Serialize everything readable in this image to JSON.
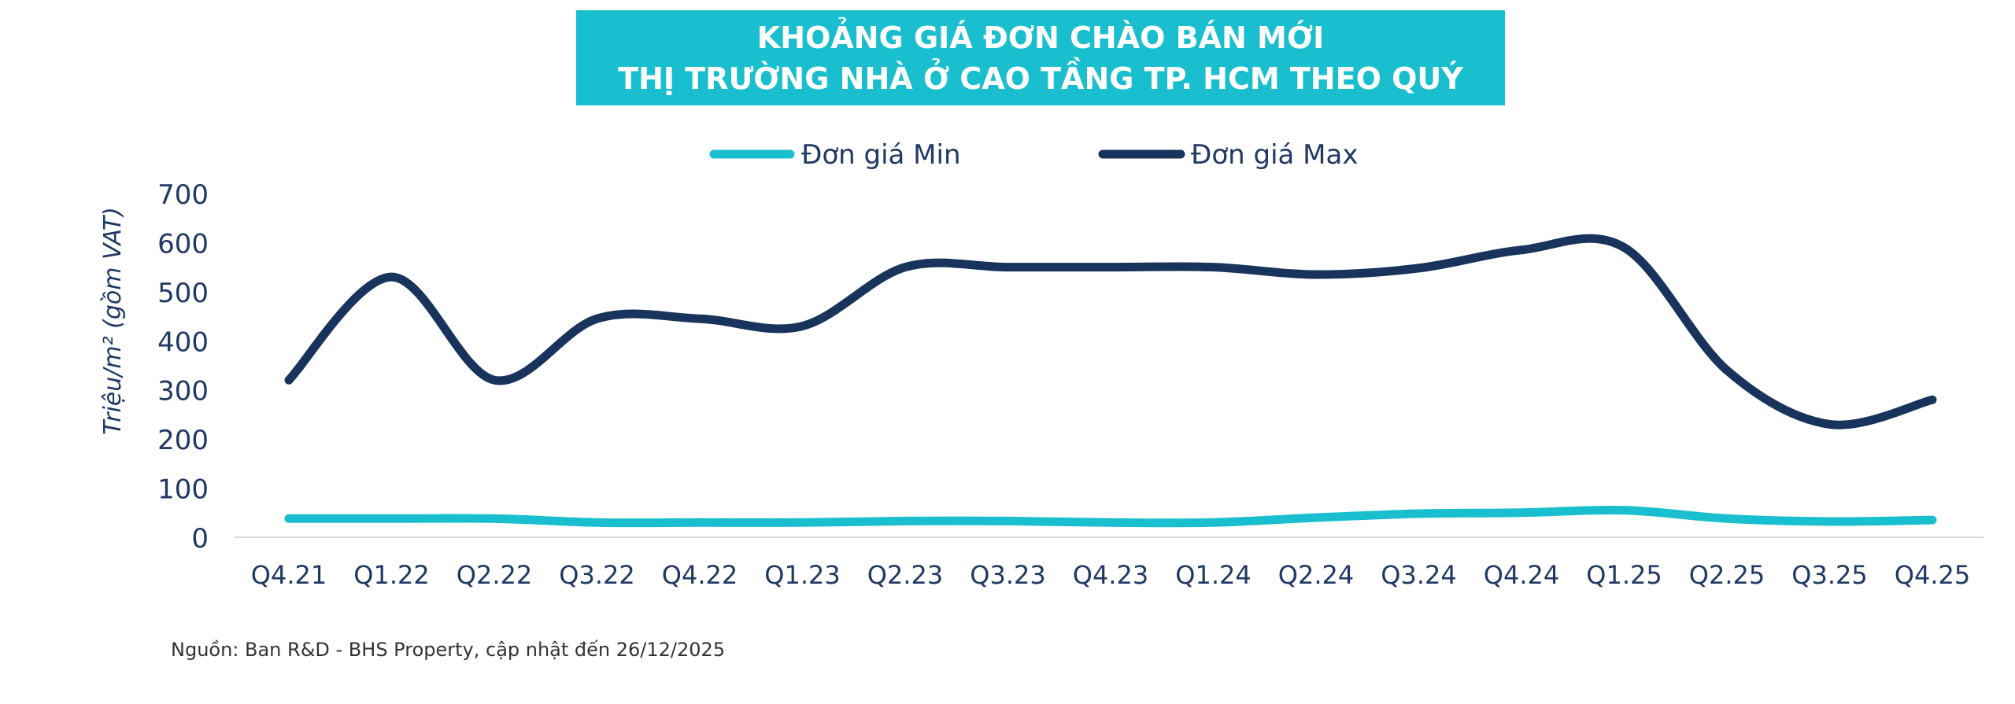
{
  "title": {
    "line1": "KHOẢNG GIÁ ĐƠN CHÀO BÁN MỚI",
    "line2": "THỊ TRƯỜNG NHÀ Ở CAO TẦNG TP. HCM THEO QUÝ"
  },
  "source": "Nguồn: Ban R&D - BHS Property, cập nhật đến 26/12/2025",
  "colors": {
    "title_bg": "#1ABFCF",
    "min": "#1ABFCF",
    "max": "#18345C",
    "text": "#1F3864"
  },
  "chart_data": {
    "type": "line",
    "ylabel": "Triệu/m² (gồm VAT)",
    "xlabel": "",
    "ylim": [
      0,
      700
    ],
    "yticks": [
      0,
      100,
      200,
      300,
      400,
      500,
      600,
      700
    ],
    "grid": false,
    "legend_position": "top-center",
    "smooth": true,
    "categories": [
      "Q4.21",
      "Q1.22",
      "Q2.22",
      "Q3.22",
      "Q4.22",
      "Q1.23",
      "Q2.23",
      "Q3.23",
      "Q4.23",
      "Q1.24",
      "Q2.24",
      "Q3.24",
      "Q4.24",
      "Q1.25",
      "Q2.25",
      "Q3.25",
      "Q4.25"
    ],
    "series": [
      {
        "name": "Đơn giá Min",
        "color": "#1ABFCF",
        "values": [
          38,
          38,
          38,
          30,
          30,
          30,
          33,
          33,
          30,
          30,
          40,
          48,
          50,
          55,
          38,
          32,
          35
        ]
      },
      {
        "name": "Đơn giá Max",
        "color": "#18345C",
        "values": [
          320,
          530,
          320,
          445,
          445,
          430,
          550,
          550,
          550,
          550,
          535,
          548,
          585,
          590,
          340,
          230,
          280
        ]
      }
    ]
  }
}
